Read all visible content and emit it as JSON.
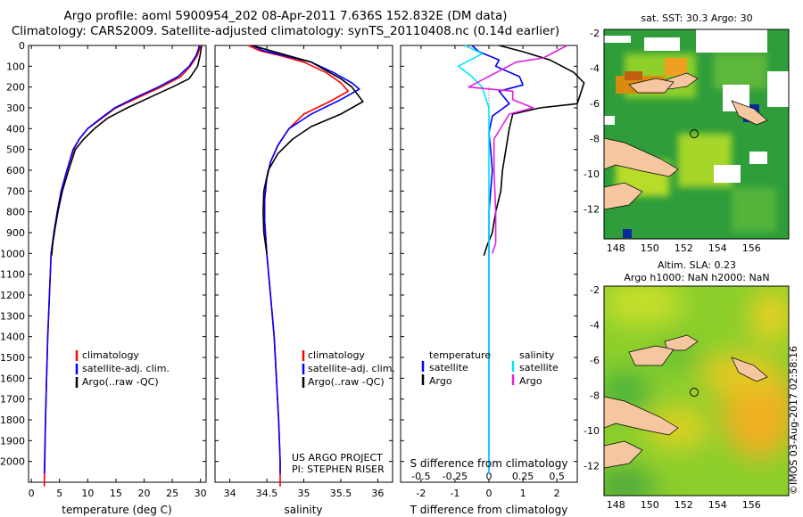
{
  "header": {
    "line1": "Argo profile: aoml 5900954_202 08-Apr-2011 7.636S 152.832E (DM data)",
    "line2": "Climatology: CARS2009. Satellite-adjusted climatology: synTS_20110408.nc (0.14d earlier)"
  },
  "colors": {
    "climatology": "#ff0000",
    "satellite": "#0000ff",
    "argo": "#000000",
    "sal_satellite": "#00e5ff",
    "sal_argo": "#e020e0",
    "land": "#f5c7a0"
  },
  "chart_data": [
    {
      "type": "line",
      "id": "temperature",
      "xlabel": "temperature (deg C)",
      "ylabel": "",
      "xlim": [
        -0.5,
        31
      ],
      "ylim": [
        0,
        2100
      ],
      "xticks": [
        0,
        5,
        10,
        15,
        20,
        25,
        30
      ],
      "yticks": [
        0,
        100,
        200,
        300,
        400,
        500,
        600,
        700,
        800,
        900,
        1000,
        1100,
        1200,
        1300,
        1400,
        1500,
        1600,
        1700,
        1800,
        1900,
        2000
      ],
      "legend": [
        "climatology",
        "satellite-adj. clim.",
        "Argo(..raw -QC)"
      ],
      "series": [
        {
          "name": "climatology",
          "color": "#ff0000",
          "x": [
            30.0,
            29.8,
            29.4,
            28.2,
            26.5,
            23.0,
            19.0,
            15.0,
            12.5,
            10.0,
            8.5,
            7.5,
            6.3,
            5.3,
            4.6,
            4.0,
            3.5,
            3.2,
            2.9,
            2.7,
            2.5,
            2.4,
            2.3,
            2.3
          ],
          "depth": [
            0,
            20,
            50,
            100,
            150,
            200,
            250,
            300,
            350,
            400,
            450,
            500,
            600,
            700,
            800,
            900,
            1000,
            1200,
            1400,
            1600,
            1800,
            2000,
            2100,
            2120
          ]
        },
        {
          "name": "satellite-adj. clim.",
          "color": "#0000ff",
          "x": [
            29.8,
            29.6,
            29.2,
            28.0,
            26.0,
            22.5,
            18.5,
            14.8,
            12.3,
            10.0,
            8.5,
            7.4,
            6.3,
            5.3,
            4.6,
            4.0,
            3.5,
            3.2,
            2.9,
            2.7,
            2.5,
            2.35,
            2.3
          ],
          "depth": [
            0,
            20,
            50,
            100,
            150,
            200,
            250,
            300,
            350,
            400,
            450,
            500,
            600,
            700,
            800,
            900,
            1000,
            1200,
            1400,
            1600,
            1800,
            2000,
            2060
          ]
        },
        {
          "name": "Argo(..raw -QC)",
          "color": "#000000",
          "x": [
            30.2,
            30.1,
            29.9,
            29.5,
            28.0,
            25.0,
            21.0,
            17.0,
            13.5,
            11.2,
            9.3,
            7.8,
            6.6,
            5.5,
            4.7,
            4.2,
            3.8,
            3.6
          ],
          "depth": [
            0,
            20,
            50,
            100,
            160,
            200,
            250,
            300,
            350,
            400,
            450,
            500,
            600,
            700,
            800,
            880,
            950,
            1010
          ]
        }
      ]
    },
    {
      "type": "line",
      "id": "salinity",
      "xlabel": "salinity",
      "ylabel": "",
      "xlim": [
        33.8,
        36.2
      ],
      "ylim": [
        0,
        2100
      ],
      "xticks": [
        34,
        34.5,
        35,
        35.5,
        36
      ],
      "legend": [
        "climatology",
        "satellite-adj. clim.",
        "Argo(..raw -QC)"
      ],
      "series": [
        {
          "name": "climatology",
          "color": "#ff0000",
          "x": [
            34.25,
            34.4,
            34.7,
            35.0,
            35.3,
            35.5,
            35.6,
            35.35,
            35.0,
            34.8,
            34.65,
            34.55,
            34.5,
            34.47,
            34.47,
            34.5,
            34.55,
            34.6,
            34.63,
            34.66,
            34.68,
            34.68
          ],
          "depth": [
            0,
            25,
            50,
            80,
            130,
            180,
            220,
            270,
            330,
            400,
            480,
            560,
            640,
            740,
            840,
            1000,
            1200,
            1400,
            1600,
            1800,
            2000,
            2120
          ]
        },
        {
          "name": "satellite-adj. clim.",
          "color": "#0000ff",
          "x": [
            34.3,
            34.45,
            34.75,
            35.1,
            35.4,
            35.65,
            35.75,
            35.5,
            35.1,
            34.8,
            34.65,
            34.55,
            34.5,
            34.47,
            34.47,
            34.5,
            34.55,
            34.6,
            34.63,
            34.66,
            34.68,
            34.68
          ],
          "depth": [
            0,
            25,
            50,
            80,
            130,
            180,
            210,
            260,
            330,
            400,
            480,
            560,
            640,
            740,
            840,
            1000,
            1200,
            1400,
            1600,
            1800,
            2000,
            2060
          ]
        },
        {
          "name": "Argo(..raw -QC)",
          "color": "#000000",
          "x": [
            34.3,
            34.5,
            34.8,
            35.1,
            35.3,
            35.5,
            35.65,
            35.8,
            35.5,
            35.1,
            34.85,
            34.65,
            34.52,
            34.46,
            34.45,
            34.46,
            34.5
          ],
          "depth": [
            0,
            20,
            50,
            80,
            120,
            160,
            200,
            270,
            330,
            390,
            450,
            520,
            600,
            700,
            800,
            900,
            1000
          ]
        }
      ]
    },
    {
      "type": "line",
      "id": "difference",
      "xlabel": "T difference from climatology",
      "xlabel_top": "S difference from climatology",
      "xlim": [
        -2.6,
        2.6
      ],
      "ylim": [
        0,
        2100
      ],
      "xticks": [
        -2,
        -1,
        0,
        1,
        2
      ],
      "sticks_label": [
        "-0.5",
        "-0.25",
        "0",
        "0.25",
        "0.5"
      ],
      "sticks_pos": [
        -2,
        -1,
        0,
        1,
        2
      ],
      "legend_headers": [
        "temperature",
        "salinity"
      ],
      "legend": [
        "satellite",
        "Argo",
        "satellite",
        "Argo"
      ],
      "series": [
        {
          "name": "temperature satellite",
          "color": "#0000ff",
          "x": [
            -0.5,
            -0.3,
            0.3,
            0.2,
            0.9,
            1.0,
            0.3,
            0.6,
            0.1,
            0.0,
            0.05,
            0.1,
            0.05,
            0.0,
            0.0,
            0.0,
            0.0,
            0.0
          ],
          "depth": [
            0,
            30,
            70,
            100,
            150,
            190,
            220,
            280,
            340,
            420,
            500,
            600,
            700,
            800,
            1000,
            1400,
            1800,
            2060
          ]
        },
        {
          "name": "temperature Argo",
          "color": "#000000",
          "x": [
            0.3,
            1.0,
            1.8,
            2.5,
            2.8,
            2.6,
            1.5,
            0.7,
            0.6,
            0.5,
            0.4,
            0.35,
            0.2,
            0.1,
            -0.05,
            -0.15
          ],
          "depth": [
            0,
            30,
            70,
            130,
            180,
            280,
            300,
            330,
            400,
            500,
            600,
            700,
            800,
            900,
            960,
            1010
          ]
        },
        {
          "name": "salinity satellite",
          "color": "#00e5ff",
          "x": [
            -0.7,
            -0.2,
            -0.9,
            -0.5,
            -0.2,
            0.0,
            0.0,
            0.0,
            0.0
          ],
          "depth": [
            0,
            40,
            100,
            150,
            200,
            300,
            500,
            1000,
            2060
          ]
        },
        {
          "name": "salinity Argo",
          "color": "#e020e0",
          "x": [
            2.3,
            1.6,
            0.8,
            -0.6,
            0.7,
            0.7,
            1.3,
            0.6,
            0.15,
            0.15,
            0.2,
            0.2,
            0.1
          ],
          "depth": [
            0,
            60,
            80,
            200,
            220,
            260,
            300,
            330,
            450,
            600,
            800,
            950,
            1000
          ]
        }
      ]
    },
    {
      "type": "heatmap",
      "id": "sst_map",
      "title": "sat. SST: 30.3 Argo: 30",
      "xlim": [
        147.3,
        158.2
      ],
      "ylim": [
        -13.7,
        -1.8
      ],
      "xticks": [
        148,
        150,
        152,
        154,
        156
      ],
      "yticks": [
        -2,
        -4,
        -6,
        -8,
        -10,
        -12
      ],
      "marker": [
        152.832,
        -7.636
      ]
    },
    {
      "type": "heatmap",
      "id": "sla_map",
      "title": "Altim. SLA: 0.23",
      "subtitle": "Argo h1000: NaN h2000: NaN",
      "xlim": [
        147.3,
        158.2
      ],
      "ylim": [
        -13.7,
        -1.8
      ],
      "xticks": [
        148,
        150,
        152,
        154,
        156
      ],
      "yticks": [
        -2,
        -4,
        -6,
        -8,
        -10,
        -12
      ],
      "marker": [
        152.832,
        -7.636
      ]
    }
  ],
  "panels": {
    "temp_legend": [
      "climatology",
      "satellite-adj. clim.",
      "Argo(..raw -QC)"
    ],
    "sal_legend": [
      "climatology",
      "satellite-adj. clim.",
      "Argo(..raw -QC)"
    ],
    "project": "US ARGO PROJECT",
    "pi": "PI: STEPHEN RISER",
    "diff_temp_header": "temperature",
    "diff_sal_header": "salinity",
    "diff_sat_label": "satellite",
    "diff_argo_label": "Argo",
    "diff_sal_sat_label": "satellite",
    "diff_sal_argo_label": "Argo"
  },
  "credit": "©IMOS 03-Aug-2017 02:58:16"
}
